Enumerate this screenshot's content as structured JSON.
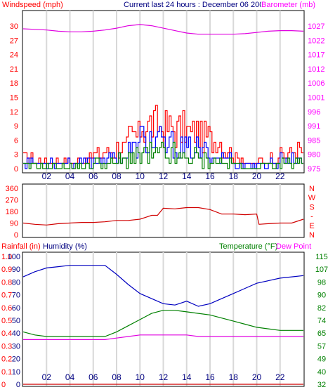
{
  "header": {
    "left_label": "Windspeed (mph)",
    "center_title": "Current last 24 hours : December 06 2004",
    "right_label": "Barometer (mb)"
  },
  "colors": {
    "background": "#ffffff",
    "frame": "#000000",
    "grid": "#d8d8d8",
    "wind_speed": "#0000ff",
    "wind_gust": "#ff0000",
    "wind_average": "#008000",
    "barometer": "#e000e0",
    "direction": "#d00000",
    "humidity": "#0000c0",
    "temperature": "#008000",
    "dew_point": "#e000e0",
    "rainfall": "#d00000",
    "rain_axis": "#ff0000",
    "humidity_axis": "#000080",
    "temp_axis": "#008000",
    "dew_axis": "#ff00ff"
  },
  "bottom_labels": {
    "rainfall": "Rainfall (in)",
    "humidity": "Humidity (%)",
    "temperature": "Temperature (°F)",
    "dew_point": "Dew Point"
  },
  "chart_data": [
    {
      "type": "line",
      "id": "wind_barometer",
      "x_ticks": [
        "02",
        "04",
        "06",
        "08",
        "10",
        "12",
        "14",
        "16",
        "18",
        "20",
        "22"
      ],
      "x_tick_hours": [
        2,
        4,
        6,
        8,
        10,
        12,
        14,
        16,
        18,
        20,
        22
      ],
      "x_range_hours": [
        0,
        24
      ],
      "wind_axis": {
        "ticks": [
          "0",
          "3",
          "6",
          "9",
          "12",
          "15",
          "18",
          "21",
          "24",
          "27",
          "30"
        ],
        "range": [
          0,
          30
        ]
      },
      "barometer_axis": {
        "ticks": [
          "975",
          "980",
          "985",
          "991",
          "996",
          "1001",
          "1006",
          "1012",
          "1017",
          "1022",
          "1027"
        ],
        "range": [
          975,
          1027
        ]
      },
      "barometer": {
        "hours": [
          0,
          1,
          2,
          3,
          4,
          5,
          6,
          7,
          8,
          9,
          10,
          11,
          12,
          13,
          14,
          15,
          16,
          17,
          18,
          19,
          20,
          21,
          22,
          23,
          24
        ],
        "values": [
          1021.0,
          1020.8,
          1020.6,
          1020.2,
          1020.0,
          1020.0,
          1020.2,
          1020.6,
          1021.2,
          1022.0,
          1022.4,
          1022.0,
          1021.2,
          1020.4,
          1019.6,
          1019.2,
          1019.2,
          1019.2,
          1019.2,
          1019.4,
          1019.8,
          1020.2,
          1020.4,
          1020.4,
          1020.2
        ]
      },
      "gust_hourly_max": [
        3,
        2,
        2,
        2,
        2,
        3,
        4,
        5,
        6,
        9,
        12,
        12,
        11,
        11,
        10,
        9,
        8,
        5,
        3,
        1,
        2,
        3,
        4,
        5
      ],
      "speed_hourly_max": [
        2,
        2,
        2,
        2,
        2,
        2,
        3,
        3,
        4,
        6,
        9,
        8,
        7,
        6,
        6,
        5,
        4,
        3,
        1,
        1,
        1,
        2,
        3,
        3
      ],
      "average_hourly_max": [
        1,
        1,
        1,
        1,
        1,
        1,
        2,
        2,
        3,
        4,
        5,
        5,
        5,
        4,
        4,
        3,
        3,
        2,
        1,
        0,
        1,
        1,
        2,
        2
      ]
    },
    {
      "type": "line",
      "id": "wind_direction",
      "y_ticks": [
        "0",
        "90",
        "180",
        "270",
        "360"
      ],
      "y_range": [
        0,
        360
      ],
      "compass_labels": [
        "N",
        "W",
        "S",
        "-",
        "E",
        "N"
      ],
      "series": [
        {
          "hours": [
            0,
            1,
            2,
            3,
            4,
            5,
            6,
            7,
            8,
            9,
            10,
            10.5,
            11,
            11.5,
            12,
            13,
            14,
            15,
            16,
            17,
            18,
            19,
            20,
            20.2,
            21,
            22,
            23,
            24
          ],
          "values": [
            90,
            80,
            75,
            85,
            90,
            95,
            95,
            100,
            110,
            110,
            120,
            135,
            150,
            150,
            205,
            200,
            210,
            210,
            195,
            160,
            160,
            155,
            160,
            80,
            85,
            90,
            90,
            120
          ]
        }
      ]
    },
    {
      "type": "line",
      "id": "humidity_temperature",
      "rain_axis": {
        "ticks": [
          "0",
          "0.1",
          "0.2",
          "0.3",
          "0.4",
          "0.5",
          "0.6",
          "0.7",
          "0.8",
          "0.9",
          "1.0"
        ],
        "range": [
          0,
          1.0
        ]
      },
      "humidity_axis": {
        "ticks": [
          "0",
          "10",
          "20",
          "30",
          "40",
          "50",
          "60",
          "70",
          "80",
          "90",
          "100"
        ],
        "range": [
          0,
          100
        ]
      },
      "temperature_axis": {
        "ticks": [
          "32",
          "40",
          "49",
          "57",
          "65",
          "74",
          "82",
          "90",
          "98",
          "107",
          "115"
        ],
        "range": [
          32,
          115
        ]
      },
      "humidity": {
        "hours": [
          0,
          1,
          2,
          3,
          4,
          5,
          6,
          7,
          8,
          9,
          10,
          11,
          12,
          13,
          14,
          15,
          16,
          17,
          18,
          19,
          20,
          21,
          22,
          23,
          24
        ],
        "values": [
          84,
          88,
          91,
          92,
          93,
          93,
          93,
          93,
          86,
          78,
          71,
          67,
          63,
          62,
          65,
          61,
          63,
          67,
          71,
          75,
          79,
          81,
          83,
          84,
          85
        ]
      },
      "temperature": {
        "hours": [
          0,
          1,
          2,
          3,
          4,
          5,
          6,
          7,
          8,
          9,
          10,
          11,
          12,
          13,
          14,
          15,
          16,
          17,
          18,
          19,
          20,
          21,
          22,
          23,
          24
        ],
        "values": [
          66,
          64,
          63,
          63,
          63,
          63,
          63,
          63,
          66,
          70,
          74,
          78,
          80,
          80,
          79,
          78,
          77,
          75,
          73,
          71,
          69,
          68,
          67,
          67,
          67
        ]
      },
      "dew_point": {
        "hours": [
          0,
          1,
          2,
          3,
          4,
          5,
          6,
          7,
          8,
          9,
          10,
          11,
          12,
          13,
          14,
          15,
          16,
          17,
          18,
          19,
          20,
          21,
          22,
          23,
          24
        ],
        "values": [
          61,
          61,
          61,
          61,
          61,
          61,
          61,
          61,
          62,
          63,
          64,
          64,
          64,
          64,
          64,
          63,
          63,
          63,
          63,
          63,
          63,
          63,
          63,
          63,
          63
        ]
      },
      "rainfall": {
        "hours": [
          0,
          24
        ],
        "values": [
          0.0,
          0.0
        ]
      }
    }
  ]
}
